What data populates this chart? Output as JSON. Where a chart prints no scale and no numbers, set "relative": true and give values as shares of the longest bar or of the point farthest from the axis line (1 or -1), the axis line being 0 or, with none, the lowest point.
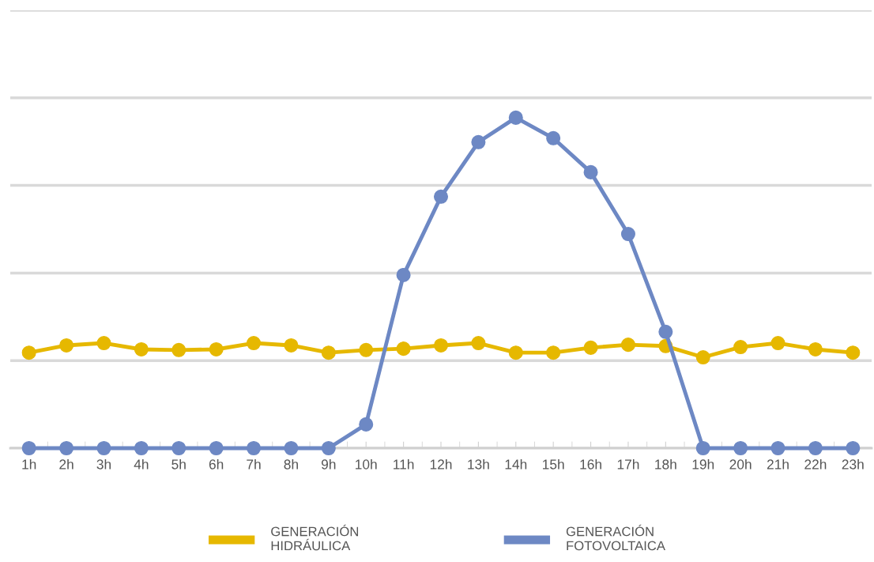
{
  "chart_data": {
    "type": "line",
    "relative": true,
    "grid": "y",
    "legend": "bottom",
    "marker": "circle",
    "line_style": "solid",
    "categories": [
      "1h",
      "2h",
      "3h",
      "4h",
      "5h",
      "6h",
      "7h",
      "8h",
      "9h",
      "10h",
      "11h",
      "12h",
      "13h",
      "14h",
      "15h",
      "16h",
      "17h",
      "18h",
      "19h",
      "20h",
      "21h",
      "22h",
      "23h"
    ],
    "series": [
      {
        "name": "GENERACIÓN\nHIDRÁULICA",
        "color": "#e6b800",
        "values": [
          0.289,
          0.311,
          0.318,
          0.299,
          0.297,
          0.299,
          0.318,
          0.311,
          0.289,
          0.297,
          0.301,
          0.311,
          0.318,
          0.289,
          0.289,
          0.304,
          0.313,
          0.309,
          0.275,
          0.306,
          0.318,
          0.299,
          0.289
        ]
      },
      {
        "name": "GENERACIÓN\nFOTOVOLTAICA",
        "color": "#6d88c4",
        "values": [
          0,
          0,
          0,
          0,
          0,
          0,
          0,
          0,
          0,
          0.072,
          0.524,
          0.761,
          0.926,
          1,
          0.938,
          0.835,
          0.648,
          0.352,
          0,
          0,
          0,
          0,
          0
        ]
      }
    ]
  }
}
